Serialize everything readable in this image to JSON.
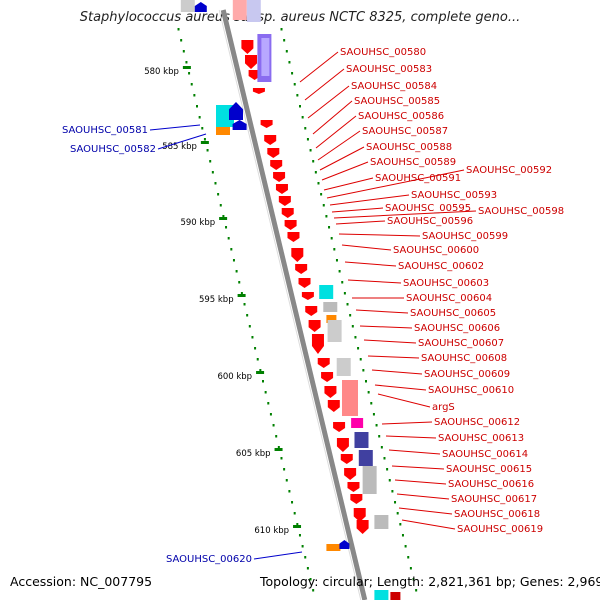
{
  "title": "Staphylococcus aureus subsp. aureus NCTC 8325, complete geno...",
  "accession": "Accession: NC_007795",
  "topology": "Topology: circular; Length: 2,821,361 bp; Genes: 2,969",
  "colors": {
    "forward_label": "#cc0000",
    "reverse_label": "#0000aa",
    "backbone": "#888888",
    "tick": "#008000"
  },
  "ticks": [
    "580 kbp",
    "585 kbp",
    "590 kbp",
    "595 kbp",
    "600 kbp",
    "605 kbp",
    "610 kbp"
  ],
  "reverse_genes": [
    "SAOUHSC_00581",
    "SAOUHSC_00582",
    "SAOUHSC_00620"
  ],
  "forward_genes": [
    "SAOUHSC_00580",
    "SAOUHSC_00583",
    "SAOUHSC_00584",
    "SAOUHSC_00585",
    "SAOUHSC_00586",
    "SAOUHSC_00587",
    "SAOUHSC_00588",
    "SAOUHSC_00589",
    "SAOUHSC_00591",
    "SAOUHSC_00592",
    "SAOUHSC_00593",
    "SAOUHSC_00595",
    "SAOUHSC_00598",
    "SAOUHSC_00596",
    "SAOUHSC_00599",
    "SAOUHSC_00600",
    "SAOUHSC_00602",
    "SAOUHSC_00603",
    "SAOUHSC_00604",
    "SAOUHSC_00605",
    "SAOUHSC_00606",
    "SAOUHSC_00607",
    "SAOUHSC_00608",
    "SAOUHSC_00609",
    "SAOUHSC_00610",
    "argS",
    "SAOUHSC_00612",
    "SAOUHSC_00613",
    "SAOUHSC_00614",
    "SAOUHSC_00615",
    "SAOUHSC_00616",
    "SAOUHSC_00617",
    "SAOUHSC_00618",
    "SAOUHSC_00619"
  ]
}
